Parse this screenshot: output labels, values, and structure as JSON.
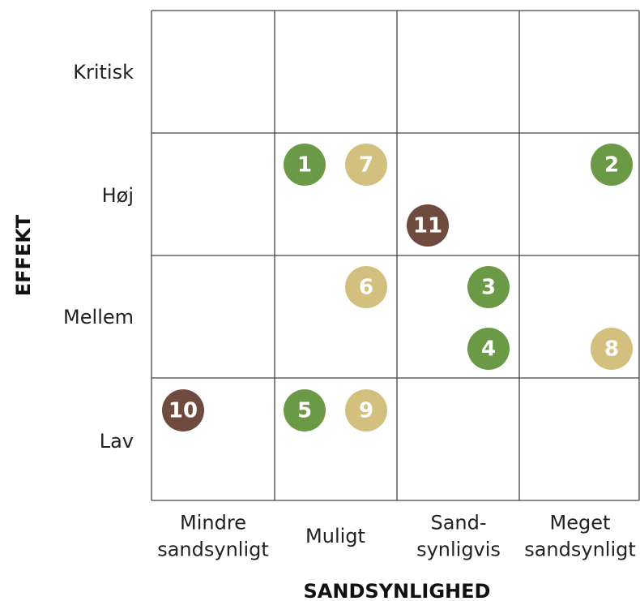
{
  "y_axis": {
    "title": "EFFEKT",
    "labels": [
      "Kritisk",
      "Høj",
      "Mellem",
      "Lav"
    ]
  },
  "x_axis": {
    "title": "SANDSYNLIGHED",
    "labels": [
      [
        "Mindre",
        "sandsynligt"
      ],
      [
        "Muligt"
      ],
      [
        "Sand-",
        "synligvis"
      ],
      [
        "Meget",
        "sandsynligt"
      ]
    ]
  },
  "nodes": [
    {
      "label": "1",
      "color": "#6b9a47"
    },
    {
      "label": "7",
      "color": "#d3c07f"
    },
    {
      "label": "2",
      "color": "#6b9a47"
    },
    {
      "label": "11",
      "color": "#6f4a3e"
    },
    {
      "label": "6",
      "color": "#d3c07f"
    },
    {
      "label": "3",
      "color": "#6b9a47"
    },
    {
      "label": "4",
      "color": "#6b9a47"
    },
    {
      "label": "8",
      "color": "#d3c07f"
    },
    {
      "label": "10",
      "color": "#6f4a3e"
    },
    {
      "label": "5",
      "color": "#6b9a47"
    },
    {
      "label": "9",
      "color": "#d3c07f"
    }
  ]
}
